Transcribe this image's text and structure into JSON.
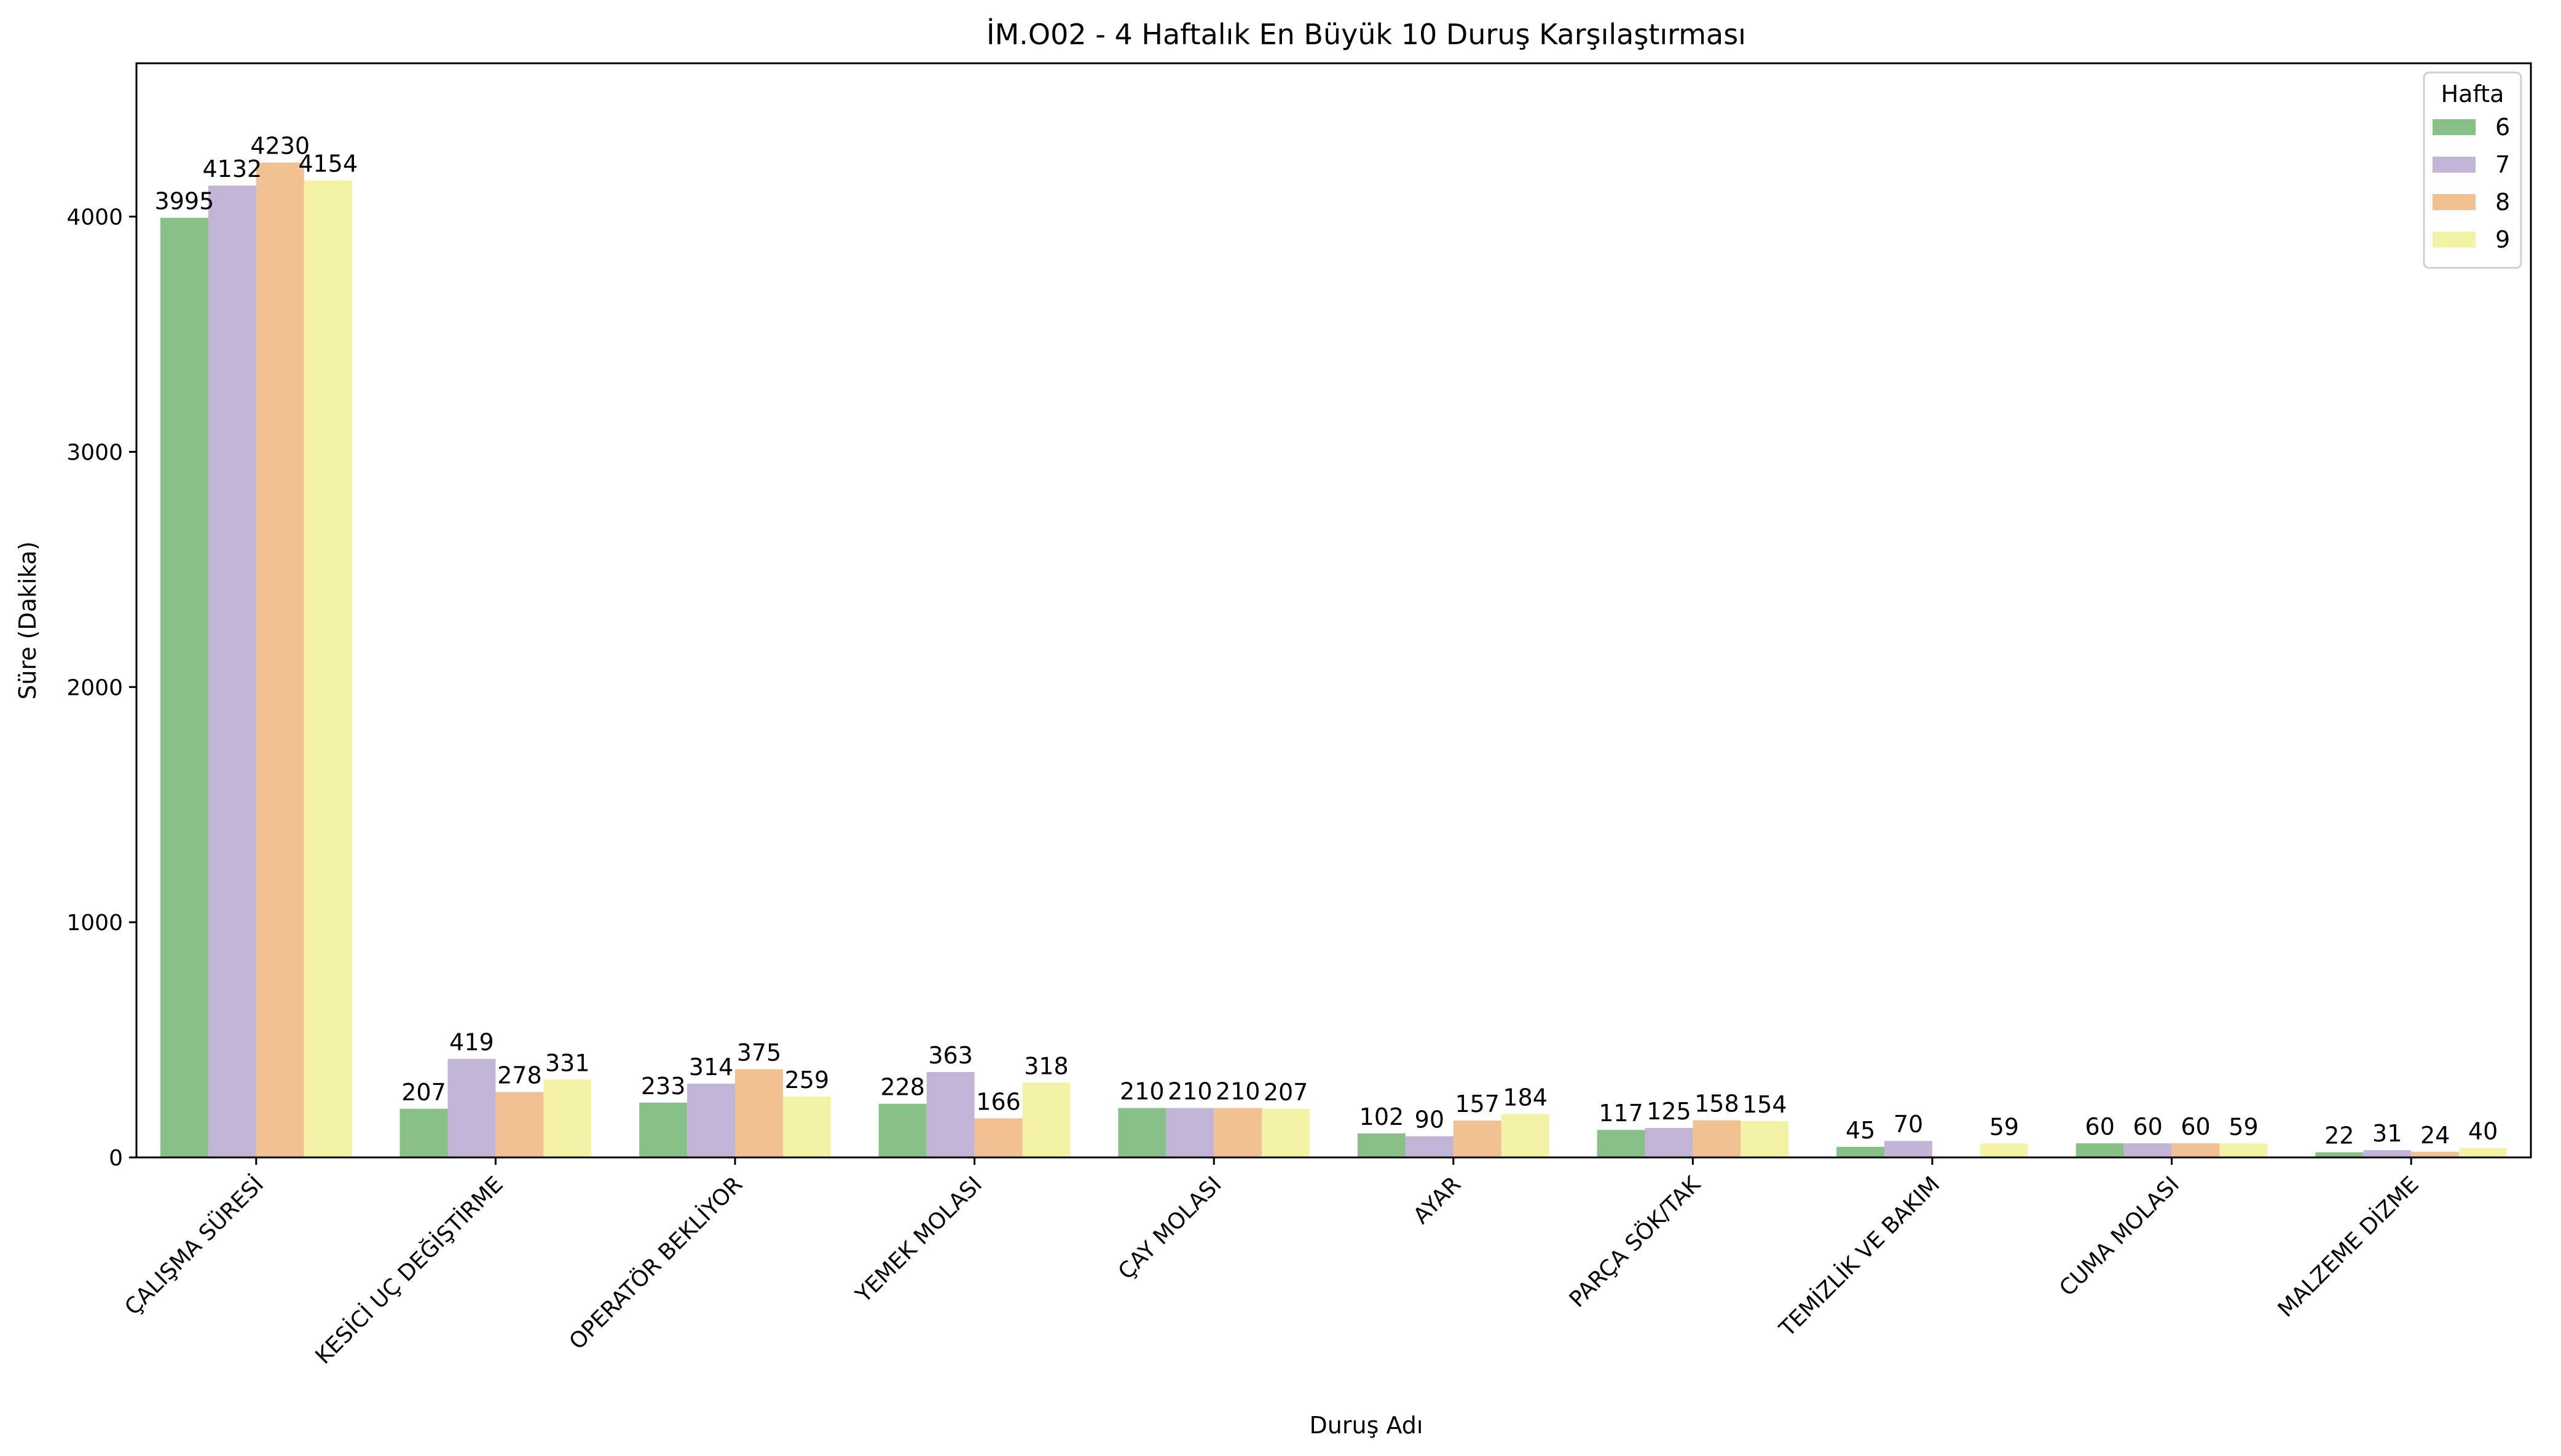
{
  "chart_data": {
    "type": "bar",
    "title": "İM.O02 - 4 Haftalık En Büyük 10 Duruş Karşılaştırması",
    "xlabel": "Duruş Adı",
    "ylabel": "Süre (Dakika)",
    "ylim": [
      0,
      4652
    ],
    "yticks": [
      0,
      1000,
      2000,
      3000,
      4000
    ],
    "grid": false,
    "legend_title": "Hafta",
    "legend_position": "top-right",
    "categories": [
      "ÇALIŞMA SÜRESİ",
      "KESİCİ UÇ DEĞİŞTİRME",
      "OPERATÖR BEKLİYOR",
      "YEMEK MOLASI",
      "ÇAY MOLASI",
      "AYAR",
      "PARÇA SÖK/TAK",
      "TEMİZLİK VE BAKIM",
      "CUMA  MOLASI",
      "MALZEME DİZME"
    ],
    "series": [
      {
        "name": "6",
        "color": "#88c187",
        "values": [
          3995,
          207,
          233,
          228,
          210,
          102,
          117,
          45,
          60,
          22
        ]
      },
      {
        "name": "7",
        "color": "#c2b4d6",
        "values": [
          4132,
          419,
          314,
          363,
          210,
          90,
          125,
          70,
          60,
          31
        ]
      },
      {
        "name": "8",
        "color": "#f1c193",
        "values": [
          4230,
          278,
          375,
          166,
          210,
          157,
          158,
          null,
          60,
          24
        ]
      },
      {
        "name": "9",
        "color": "#f4f3a5",
        "values": [
          4154,
          331,
          259,
          318,
          207,
          184,
          154,
          59,
          59,
          40
        ]
      }
    ]
  }
}
